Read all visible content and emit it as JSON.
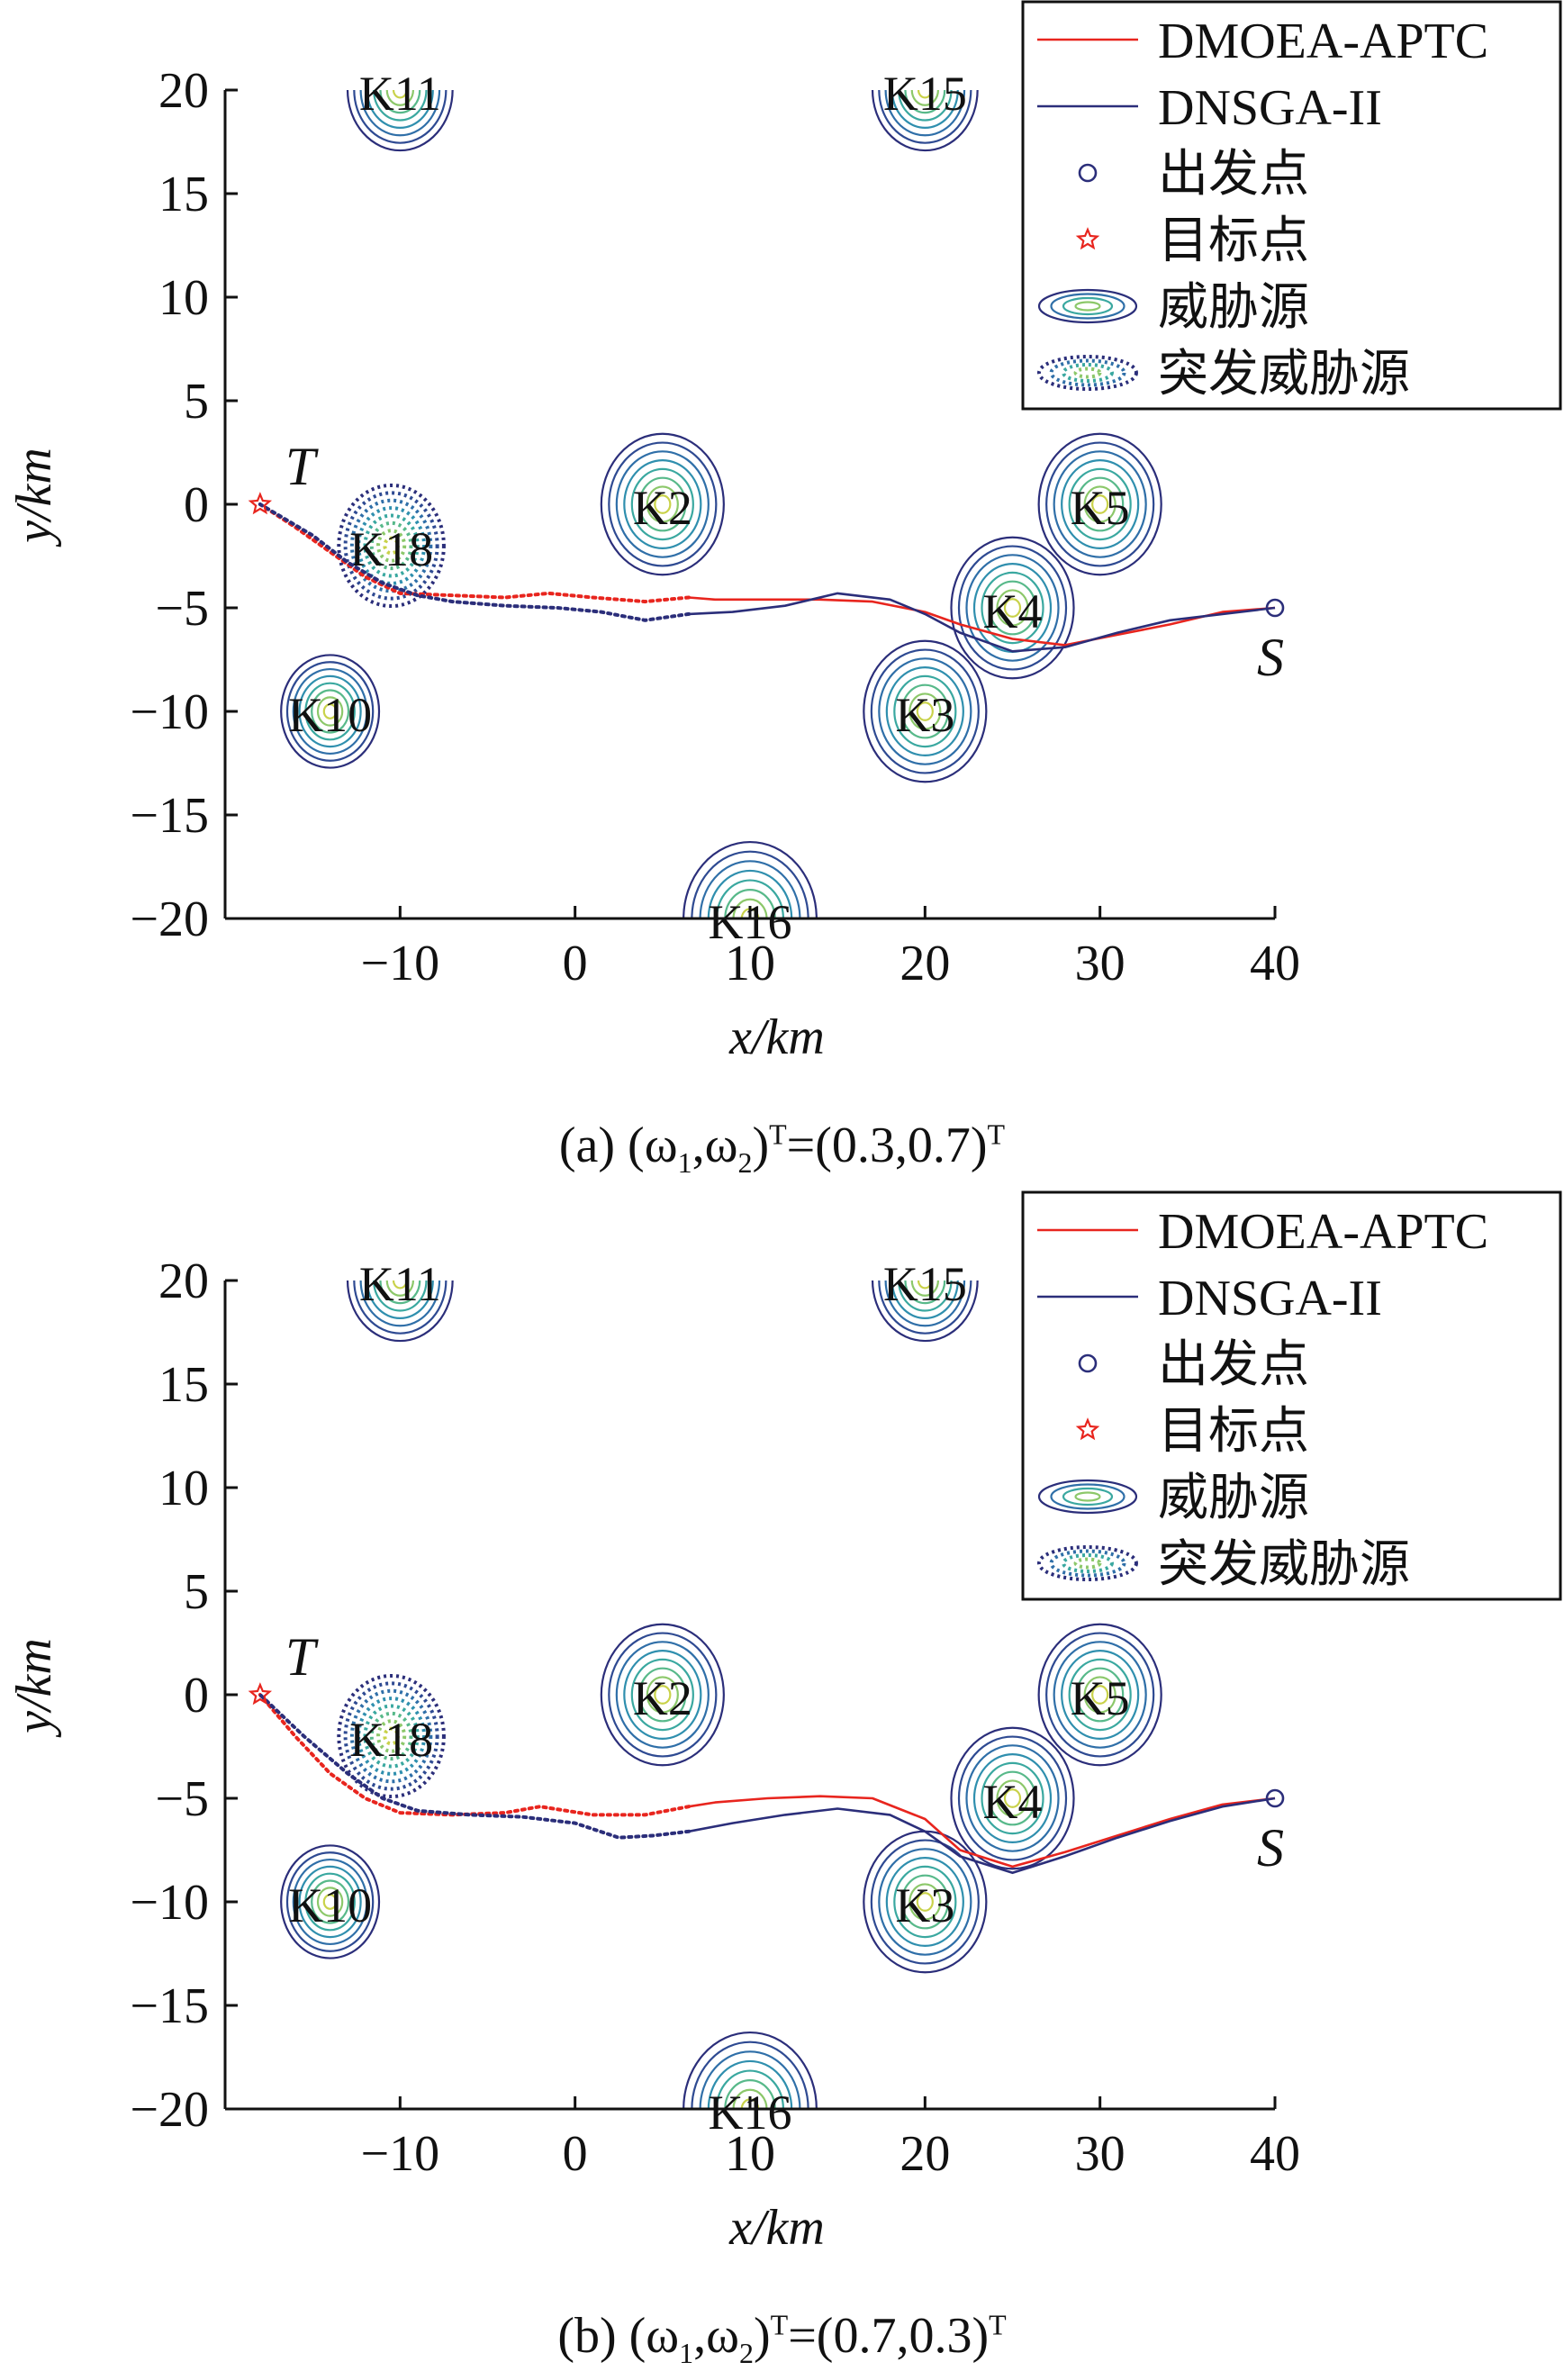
{
  "chart_data": [
    {
      "type": "line",
      "xlabel": "x/km",
      "ylabel": "y/km",
      "xlim": [
        -20,
        40
      ],
      "ylim": [
        -20,
        20
      ],
      "xticks": [
        "−10",
        "0",
        "10",
        "20",
        "30",
        "40"
      ],
      "xtick_values": [
        -10,
        0,
        10,
        20,
        30,
        40
      ],
      "yticks": [
        "20",
        "15",
        "10",
        "5",
        "0",
        "−5",
        "−10",
        "−15",
        "−20"
      ],
      "ytick_values": [
        20,
        15,
        10,
        5,
        0,
        -5,
        -10,
        -15,
        -20
      ],
      "caption": {
        "prefix": "(a) (ω",
        "sub1": "1",
        "mid": ",ω",
        "sub2": "2",
        "close": ")",
        "sup1": "T",
        "eq": "=(0.3,0.7)",
        "sup2": "T"
      },
      "legend": {
        "placement": "top-right",
        "entries": [
          "DMOEA-APTC",
          "DNSGA-II",
          "出发点",
          "目标点",
          "威胁源",
          "突发威胁源"
        ]
      },
      "start": {
        "label": "S",
        "x": 40,
        "y": -5
      },
      "target": {
        "label": "T",
        "x": -18,
        "y": 0
      },
      "threats": [
        {
          "label": "K11",
          "x": -10,
          "y": 20,
          "r": 3,
          "type": "static"
        },
        {
          "label": "K15",
          "x": 20,
          "y": 20,
          "r": 3,
          "type": "static"
        },
        {
          "label": "K2",
          "x": 5,
          "y": 0,
          "r": 3.5,
          "type": "static"
        },
        {
          "label": "K5",
          "x": 30,
          "y": 0,
          "r": 3.5,
          "type": "static"
        },
        {
          "label": "K4",
          "x": 25,
          "y": -5,
          "r": 3.5,
          "type": "static"
        },
        {
          "label": "K3",
          "x": 20,
          "y": -10,
          "r": 3.5,
          "type": "static"
        },
        {
          "label": "K10",
          "x": -14,
          "y": -10,
          "r": 2.8,
          "type": "static"
        },
        {
          "label": "K16",
          "x": 10,
          "y": -20,
          "r": 3.8,
          "type": "static"
        },
        {
          "label": "K18",
          "x": -10.5,
          "y": -2,
          "r": 3,
          "type": "sudden"
        }
      ],
      "series": [
        {
          "name": "DMOEA-APTC",
          "color": "#e8251e",
          "x": [
            40,
            37,
            34,
            31,
            28,
            25,
            22,
            20,
            17,
            14,
            11,
            8,
            6.5
          ],
          "y": [
            -5,
            -5.2,
            -5.8,
            -6.3,
            -6.8,
            -6.5,
            -5.8,
            -5.2,
            -4.7,
            -4.6,
            -4.6,
            -4.6,
            -4.5
          ],
          "dotted_from_x": 6.5,
          "dotted_x": [
            6.5,
            4,
            1,
            -1.5,
            -4,
            -7,
            -10,
            -12,
            -14,
            -16,
            -18
          ],
          "dotted_y": [
            -4.5,
            -4.7,
            -4.5,
            -4.3,
            -4.5,
            -4.4,
            -4.3,
            -3.5,
            -2.3,
            -1.1,
            0
          ]
        },
        {
          "name": "DNSGA-II",
          "color": "#2b2e7a",
          "x": [
            40,
            37,
            34,
            31,
            28,
            25,
            22,
            20,
            18,
            15,
            12,
            9,
            6.5
          ],
          "y": [
            -5,
            -5.3,
            -5.6,
            -6.2,
            -6.9,
            -7.1,
            -6.2,
            -5.3,
            -4.6,
            -4.3,
            -4.9,
            -5.2,
            -5.3
          ],
          "dotted_x": [
            6.5,
            4,
            1.5,
            -1,
            -4,
            -7,
            -9,
            -11,
            -13,
            -15,
            -18
          ],
          "dotted_y": [
            -5.3,
            -5.6,
            -5.2,
            -5,
            -4.9,
            -4.7,
            -4.4,
            -3.8,
            -2.8,
            -1.5,
            0
          ]
        }
      ]
    },
    {
      "type": "line",
      "xlabel": "x/km",
      "ylabel": "y/km",
      "xlim": [
        -20,
        40
      ],
      "ylim": [
        -20,
        20
      ],
      "xticks": [
        "−10",
        "0",
        "10",
        "20",
        "30",
        "40"
      ],
      "xtick_values": [
        -10,
        0,
        10,
        20,
        30,
        40
      ],
      "yticks": [
        "20",
        "15",
        "10",
        "5",
        "0",
        "−5",
        "−10",
        "−15",
        "−20"
      ],
      "ytick_values": [
        20,
        15,
        10,
        5,
        0,
        -5,
        -10,
        -15,
        -20
      ],
      "caption": {
        "prefix": "(b) (ω",
        "sub1": "1",
        "mid": ",ω",
        "sub2": "2",
        "close": ")",
        "sup1": "T",
        "eq": "=(0.7,0.3)",
        "sup2": "T"
      },
      "legend": {
        "placement": "top-right",
        "entries": [
          "DMOEA-APTC",
          "DNSGA-II",
          "出发点",
          "目标点",
          "威胁源",
          "突发威胁源"
        ]
      },
      "start": {
        "label": "S",
        "x": 40,
        "y": -5
      },
      "target": {
        "label": "T",
        "x": -18,
        "y": 0
      },
      "threats": [
        {
          "label": "K11",
          "x": -10,
          "y": 20,
          "r": 3,
          "type": "static"
        },
        {
          "label": "K15",
          "x": 20,
          "y": 20,
          "r": 3,
          "type": "static"
        },
        {
          "label": "K2",
          "x": 5,
          "y": 0,
          "r": 3.5,
          "type": "static"
        },
        {
          "label": "K5",
          "x": 30,
          "y": 0,
          "r": 3.5,
          "type": "static"
        },
        {
          "label": "K4",
          "x": 25,
          "y": -5,
          "r": 3.5,
          "type": "static"
        },
        {
          "label": "K3",
          "x": 20,
          "y": -10,
          "r": 3.5,
          "type": "static"
        },
        {
          "label": "K10",
          "x": -14,
          "y": -10,
          "r": 2.8,
          "type": "static"
        },
        {
          "label": "K16",
          "x": 10,
          "y": -20,
          "r": 3.8,
          "type": "static"
        },
        {
          "label": "K18",
          "x": -10.5,
          "y": -2,
          "r": 3,
          "type": "sudden"
        }
      ],
      "series": [
        {
          "name": "DMOEA-APTC",
          "color": "#e8251e",
          "x": [
            40,
            37,
            34,
            31,
            28,
            25,
            22,
            20,
            17,
            14,
            11,
            8,
            6.5
          ],
          "y": [
            -5,
            -5.3,
            -6,
            -6.8,
            -7.6,
            -8.3,
            -7.5,
            -6,
            -5,
            -4.9,
            -5,
            -5.2,
            -5.4
          ],
          "dotted_x": [
            6.5,
            4,
            1,
            -2,
            -4,
            -7,
            -10,
            -12,
            -14,
            -16,
            -18
          ],
          "dotted_y": [
            -5.4,
            -5.8,
            -5.8,
            -5.4,
            -5.7,
            -5.8,
            -5.7,
            -5,
            -3.8,
            -2,
            0
          ]
        },
        {
          "name": "DNSGA-II",
          "color": "#2b2e7a",
          "x": [
            40,
            37,
            34,
            31,
            28,
            25,
            22,
            20,
            18,
            15,
            12,
            9,
            6.5
          ],
          "y": [
            -5,
            -5.4,
            -6.1,
            -6.9,
            -7.8,
            -8.6,
            -7.8,
            -6.6,
            -5.8,
            -5.5,
            -5.8,
            -6.2,
            -6.6
          ],
          "dotted_x": [
            6.5,
            4.5,
            2.5,
            0,
            -3,
            -6,
            -9,
            -11,
            -13,
            -15.5,
            -18
          ],
          "dotted_y": [
            -6.6,
            -6.8,
            -6.9,
            -6.2,
            -5.9,
            -5.8,
            -5.6,
            -5,
            -3.8,
            -2,
            0
          ]
        }
      ]
    }
  ]
}
